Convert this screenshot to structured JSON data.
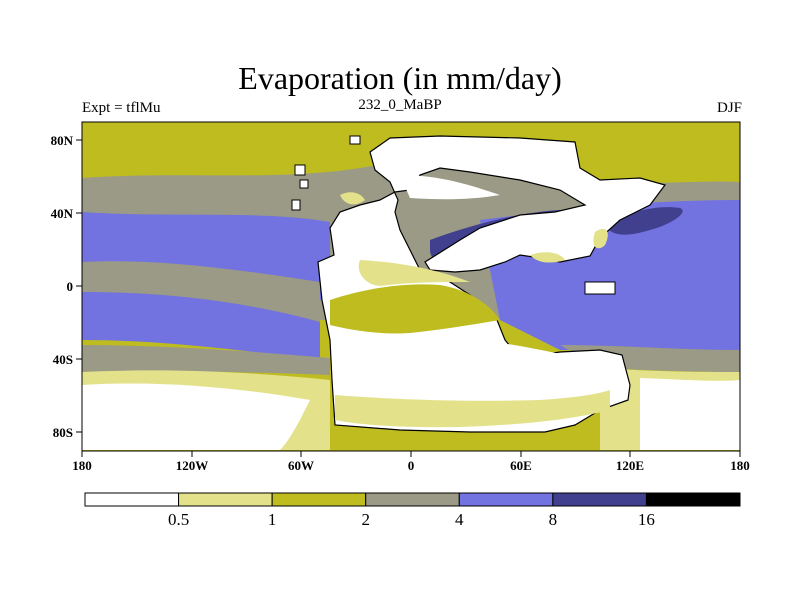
{
  "header": {
    "title": "Evaporation (in mm/day)",
    "left": "Expt = tflMu",
    "center": "232_0_MaBP",
    "right": "DJF"
  },
  "axes": {
    "x_ticks": [
      "180",
      "120W",
      "60W",
      "0",
      "60E",
      "120E",
      "180"
    ],
    "y_ticks": [
      "80N",
      "40N",
      "0",
      "40S",
      "80S"
    ],
    "x_range": [
      -180,
      180
    ],
    "y_range": [
      -90,
      90
    ]
  },
  "colorbar": {
    "labels": [
      "0.5",
      "1",
      "2",
      "4",
      "8",
      "16"
    ],
    "colors": [
      "#ffffff",
      "#e3e28b",
      "#bfbc20",
      "#9b9a86",
      "#7272e0",
      "#40408f",
      "#000000"
    ]
  }
}
